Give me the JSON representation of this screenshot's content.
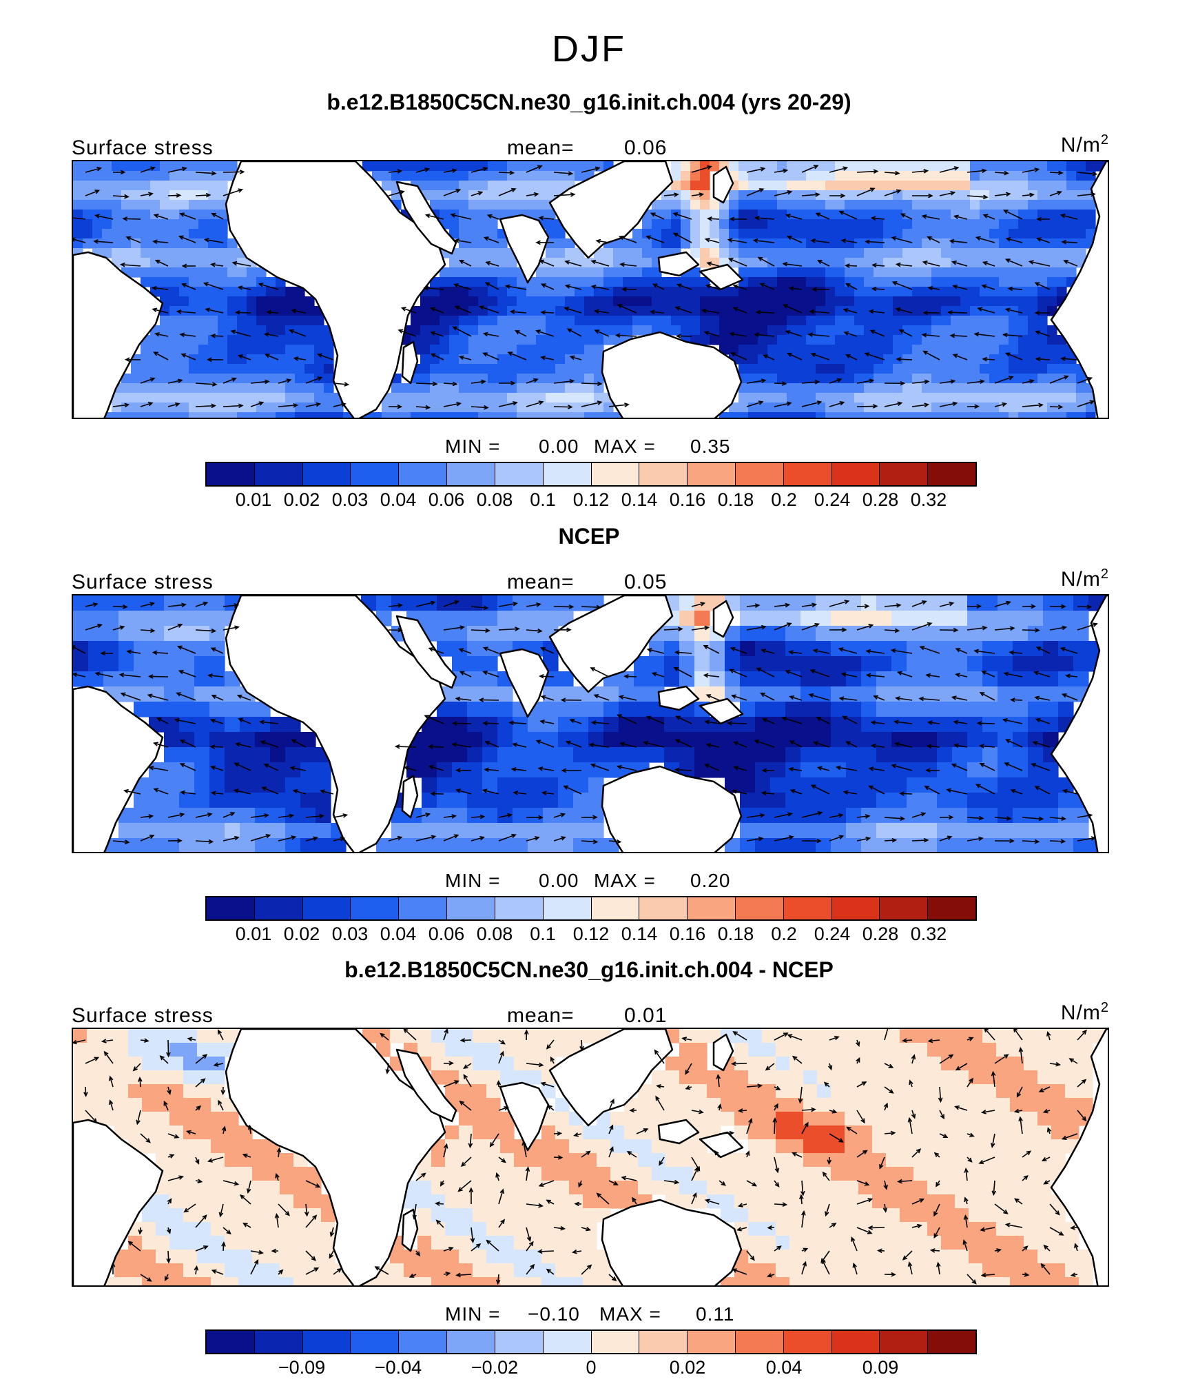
{
  "figure": {
    "supertitle": "DJF",
    "colors": [
      "#08108c",
      "#0a25b0",
      "#0c3fd6",
      "#1f5ff0",
      "#4b82f5",
      "#7ea6f8",
      "#aac6fb",
      "#d5e6fd",
      "#fde9d8",
      "#fbcbb0",
      "#f8a580",
      "#f47a52",
      "#ea4e2b",
      "#d9331a",
      "#b11f10",
      "#840d07"
    ]
  },
  "panels": [
    {
      "title": "b.e12.B1850C5CN.ne30_g16.init.ch.004 (yrs 20-29)",
      "left_label": "Surface stress",
      "mean_label": "mean=",
      "mean_value": "0.06",
      "units": "N/m",
      "units_sup": "2",
      "min_label": "MIN =",
      "min_value": "0.00",
      "max_label": "MAX =",
      "max_value": "0.35",
      "tick_labels": [
        "0.01",
        "0.02",
        "0.03",
        "0.04",
        "0.06",
        "0.08",
        "0.1",
        "0.12",
        "0.14",
        "0.16",
        "0.18",
        "0.2",
        "0.24",
        "0.28",
        "0.32"
      ]
    },
    {
      "title": "NCEP",
      "left_label": "Surface stress",
      "mean_label": "mean=",
      "mean_value": "0.05",
      "units": "N/m",
      "units_sup": "2",
      "min_label": "MIN =",
      "min_value": "0.00",
      "max_label": "MAX =",
      "max_value": "0.20",
      "tick_labels": [
        "0.01",
        "0.02",
        "0.03",
        "0.04",
        "0.06",
        "0.08",
        "0.1",
        "0.12",
        "0.14",
        "0.16",
        "0.18",
        "0.2",
        "0.24",
        "0.28",
        "0.32"
      ]
    },
    {
      "title": "b.e12.B1850C5CN.ne30_g16.init.ch.004 - NCEP",
      "left_label": "Surface stress",
      "mean_label": "mean=",
      "mean_value": "0.01",
      "units": "N/m",
      "units_sup": "2",
      "min_label": "MIN =",
      "min_value": "−0.10",
      "max_label": "MAX =",
      "max_value": "0.11",
      "tick_labels": [
        "−0.09",
        "−0.04",
        "−0.02",
        "0",
        "0.02",
        "0.04",
        "0.09"
      ]
    }
  ],
  "chart_data": [
    {
      "type": "heatmap",
      "title": "b.e12.B1850C5CN.ne30_g16.init.ch.004 (yrs 20-29)",
      "variable": "Surface stress",
      "units": "N/m^2",
      "mean": 0.06,
      "min": 0.0,
      "max": 0.35,
      "levels": [
        0.01,
        0.02,
        0.03,
        0.04,
        0.06,
        0.08,
        0.1,
        0.12,
        0.14,
        0.16,
        0.18,
        0.2,
        0.24,
        0.28,
        0.32
      ],
      "overlay": "wind stress vectors"
    },
    {
      "type": "heatmap",
      "title": "NCEP",
      "variable": "Surface stress",
      "units": "N/m^2",
      "mean": 0.05,
      "min": 0.0,
      "max": 0.2,
      "levels": [
        0.01,
        0.02,
        0.03,
        0.04,
        0.06,
        0.08,
        0.1,
        0.12,
        0.14,
        0.16,
        0.18,
        0.2,
        0.24,
        0.28,
        0.32
      ],
      "overlay": "wind stress vectors"
    },
    {
      "type": "heatmap",
      "title": "b.e12.B1850C5CN.ne30_g16.init.ch.004 - NCEP",
      "variable": "Surface stress",
      "units": "N/m^2",
      "mean": 0.01,
      "min": -0.1,
      "max": 0.11,
      "levels": [
        -0.09,
        -0.04,
        -0.02,
        0,
        0.02,
        0.04,
        0.09
      ],
      "overlay": "wind stress difference vectors"
    }
  ]
}
